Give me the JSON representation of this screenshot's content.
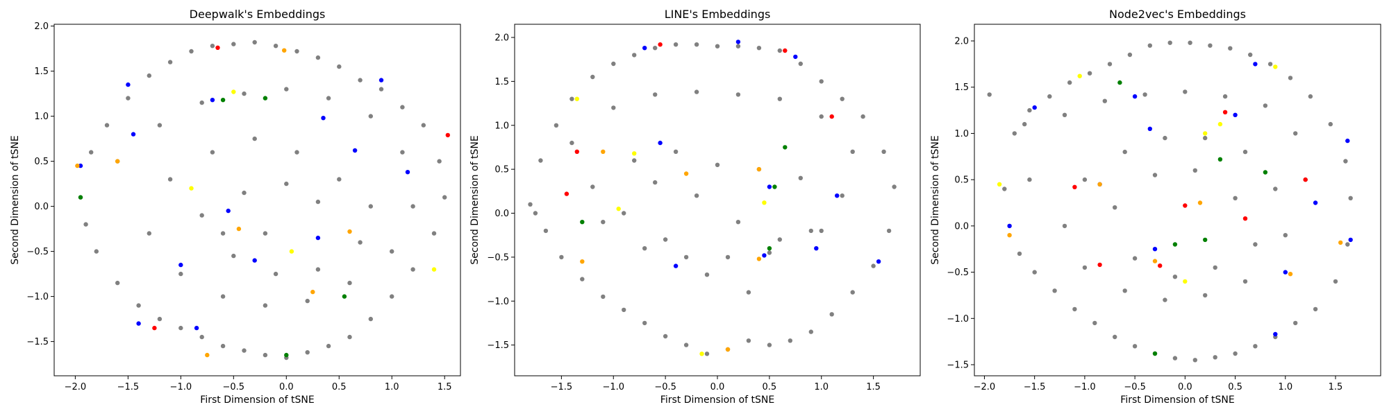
{
  "figure": {
    "background": "#ffffff"
  },
  "chart_data": [
    {
      "type": "scatter",
      "title": "Deepwalk's Embeddings",
      "xlabel": "First Dimension of tSNE",
      "ylabel": "Second Dimension of tSNE",
      "xlim": [
        -2.2,
        1.65
      ],
      "ylim": [
        -1.88,
        2.02
      ],
      "xticks": [
        -2.0,
        -1.5,
        -1.0,
        -0.5,
        0.0,
        0.5,
        1.0,
        1.5
      ],
      "yticks": [
        -1.5,
        -1.0,
        -0.5,
        0.0,
        0.5,
        1.0,
        1.5,
        2.0
      ],
      "xtick_labels": [
        "−2.0",
        "−1.5",
        "−1.0",
        "−0.5",
        "0.0",
        "0.5",
        "1.0",
        "1.5"
      ],
      "ytick_labels": [
        "−1.5",
        "−1.0",
        "−0.5",
        "0.0",
        "0.5",
        "1.0",
        "1.5",
        "2.0"
      ],
      "grid": false,
      "series": [
        {
          "color": "#808080",
          "x": [
            -1.95,
            -1.85,
            -1.7,
            -1.5,
            -1.3,
            -1.1,
            -0.9,
            -0.7,
            -0.5,
            -0.3,
            -0.1,
            0.1,
            0.3,
            0.5,
            0.7,
            0.9,
            1.1,
            1.3,
            1.45,
            1.5,
            1.4,
            1.2,
            1.0,
            0.8,
            0.6,
            0.4,
            0.2,
            0.0,
            -0.2,
            -0.4,
            -0.6,
            -0.8,
            -1.0,
            -1.2,
            -1.4,
            -1.6,
            -1.8,
            -1.9,
            -1.6,
            -1.2,
            -0.8,
            -0.4,
            0.0,
            0.4,
            0.8,
            1.1,
            1.2,
            1.0,
            0.6,
            0.2,
            -0.2,
            -0.6,
            -1.0,
            -1.3,
            -1.1,
            -0.7,
            -0.3,
            0.1,
            0.5,
            0.8,
            0.7,
            0.3,
            -0.1,
            -0.5,
            -0.8,
            -0.4,
            0.0,
            0.3,
            -0.2,
            -0.6
          ],
          "y": [
            0.1,
            0.6,
            0.9,
            1.2,
            1.45,
            1.6,
            1.72,
            1.78,
            1.8,
            1.82,
            1.78,
            1.72,
            1.65,
            1.55,
            1.4,
            1.3,
            1.1,
            0.9,
            0.5,
            0.1,
            -0.3,
            -0.7,
            -1.0,
            -1.25,
            -1.45,
            -1.55,
            -1.62,
            -1.68,
            -1.65,
            -1.6,
            -1.55,
            -1.45,
            -1.35,
            -1.25,
            -1.1,
            -0.85,
            -0.5,
            -0.2,
            0.5,
            0.9,
            1.15,
            1.25,
            1.3,
            1.2,
            1.0,
            0.6,
            0.0,
            -0.5,
            -0.85,
            -1.05,
            -1.1,
            -1.0,
            -0.75,
            -0.3,
            0.3,
            0.6,
            0.75,
            0.6,
            0.3,
            0.0,
            -0.4,
            -0.7,
            -0.75,
            -0.55,
            -0.1,
            0.15,
            0.25,
            0.05,
            -0.3,
            -0.3
          ]
        },
        {
          "color": "#0000ff",
          "x": [
            -1.95,
            -1.5,
            -1.45,
            -0.7,
            0.35,
            0.9,
            1.15,
            0.65,
            -0.3,
            -1.4,
            -0.85,
            0.3,
            -0.55,
            -1.0
          ],
          "y": [
            0.45,
            1.35,
            0.8,
            1.18,
            0.98,
            1.4,
            0.38,
            0.62,
            -0.6,
            -1.3,
            -1.35,
            -0.35,
            -0.05,
            -0.65
          ]
        },
        {
          "color": "#ff0000",
          "x": [
            -0.65,
            1.53,
            -1.25
          ],
          "y": [
            1.76,
            0.79,
            -1.35
          ]
        },
        {
          "color": "#ffa500",
          "x": [
            -1.98,
            -0.02,
            -0.75,
            0.6,
            -0.45,
            0.25,
            -1.6
          ],
          "y": [
            0.45,
            1.73,
            -1.65,
            -0.28,
            -0.25,
            -0.95,
            0.5
          ]
        },
        {
          "color": "#008000",
          "x": [
            -0.6,
            -0.2,
            0.55,
            -1.95,
            0.0
          ],
          "y": [
            1.18,
            1.2,
            -1.0,
            0.1,
            -1.65
          ]
        },
        {
          "color": "#ffff00",
          "x": [
            -0.5,
            -0.9,
            1.4,
            0.05
          ],
          "y": [
            1.27,
            0.2,
            -0.7,
            -0.5
          ]
        }
      ]
    },
    {
      "type": "scatter",
      "title": "LINE's Embeddings",
      "xlabel": "First Dimension of tSNE",
      "ylabel": "Second Dimension of tSNE",
      "xlim": [
        -1.95,
        1.95
      ],
      "ylim": [
        -1.85,
        2.15
      ],
      "xticks": [
        -1.5,
        -1.0,
        -0.5,
        0.0,
        0.5,
        1.0,
        1.5
      ],
      "yticks": [
        -1.5,
        -1.0,
        -0.5,
        0.0,
        0.5,
        1.0,
        1.5,
        2.0
      ],
      "xtick_labels": [
        "−1.5",
        "−1.0",
        "−0.5",
        "0.0",
        "0.5",
        "1.0",
        "1.5"
      ],
      "ytick_labels": [
        "−1.5",
        "−1.0",
        "−0.5",
        "0.0",
        "0.5",
        "1.0",
        "1.5",
        "2.0"
      ],
      "grid": false,
      "series": [
        {
          "color": "#808080",
          "x": [
            -1.8,
            -1.7,
            -1.55,
            -1.4,
            -1.2,
            -1.0,
            -0.8,
            -0.6,
            -0.4,
            -0.2,
            0.0,
            0.2,
            0.4,
            0.6,
            0.8,
            1.0,
            1.2,
            1.4,
            1.6,
            1.7,
            1.65,
            1.5,
            1.3,
            1.1,
            0.9,
            0.7,
            0.5,
            0.3,
            0.1,
            -0.1,
            -0.3,
            -0.5,
            -0.7,
            -0.9,
            -1.1,
            -1.3,
            -1.5,
            -1.65,
            -1.75,
            -1.4,
            -1.0,
            -0.6,
            -0.2,
            0.2,
            0.6,
            1.0,
            1.3,
            1.2,
            0.9,
            0.5,
            0.1,
            -0.3,
            -0.7,
            -1.1,
            -1.2,
            -0.8,
            -0.4,
            0.0,
            0.4,
            0.8,
            1.0,
            0.6,
            0.2,
            -0.2,
            -0.6,
            -0.9,
            -0.5,
            -0.1,
            0.3
          ],
          "y": [
            0.1,
            0.6,
            1.0,
            1.3,
            1.55,
            1.7,
            1.8,
            1.88,
            1.92,
            1.92,
            1.9,
            1.9,
            1.88,
            1.85,
            1.7,
            1.5,
            1.3,
            1.1,
            0.7,
            0.3,
            -0.2,
            -0.6,
            -0.9,
            -1.15,
            -1.35,
            -1.45,
            -1.5,
            -1.45,
            -1.55,
            -1.6,
            -1.5,
            -1.4,
            -1.25,
            -1.1,
            -0.95,
            -0.75,
            -0.5,
            -0.2,
            0.0,
            0.8,
            1.2,
            1.35,
            1.38,
            1.35,
            1.3,
            1.1,
            0.7,
            0.2,
            -0.2,
            -0.45,
            -0.5,
            -0.5,
            -0.4,
            -0.1,
            0.3,
            0.6,
            0.7,
            0.55,
            0.5,
            0.4,
            -0.2,
            -0.3,
            -0.1,
            0.2,
            0.35,
            0.0,
            -0.3,
            -0.7,
            -0.9
          ]
        },
        {
          "color": "#0000ff",
          "x": [
            -0.7,
            0.2,
            0.75,
            -0.55,
            0.5,
            0.45,
            -0.4,
            1.15,
            1.55,
            0.95
          ],
          "y": [
            1.88,
            1.95,
            1.78,
            0.8,
            0.3,
            -0.48,
            -0.6,
            0.2,
            -0.55,
            -0.4
          ]
        },
        {
          "color": "#ff0000",
          "x": [
            -0.55,
            0.65,
            1.1,
            -1.35,
            -1.45
          ],
          "y": [
            1.92,
            1.85,
            1.1,
            0.7,
            0.22
          ]
        },
        {
          "color": "#ffa500",
          "x": [
            -1.1,
            -0.3,
            0.4,
            0.4,
            0.1,
            -1.3
          ],
          "y": [
            0.7,
            0.45,
            0.5,
            -0.52,
            -1.55,
            -0.55
          ]
        },
        {
          "color": "#008000",
          "x": [
            0.55,
            -1.3,
            0.5,
            0.65
          ],
          "y": [
            0.3,
            -0.1,
            -0.4,
            0.75
          ]
        },
        {
          "color": "#ffff00",
          "x": [
            -1.35,
            -0.95,
            -0.8,
            -0.15,
            0.45
          ],
          "y": [
            1.3,
            0.05,
            0.68,
            -1.6,
            0.12
          ]
        }
      ]
    },
    {
      "type": "scatter",
      "title": "Node2vec's Embeddings",
      "xlabel": "First Dimension of tSNE",
      "ylabel": "Second Dimension of tSNE",
      "xlim": [
        -2.1,
        1.95
      ],
      "ylim": [
        -1.62,
        2.18
      ],
      "xticks": [
        -2.0,
        -1.5,
        -1.0,
        -0.5,
        0.0,
        0.5,
        1.0,
        1.5
      ],
      "yticks": [
        -1.5,
        -1.0,
        -0.5,
        0.0,
        0.5,
        1.0,
        1.5,
        2.0
      ],
      "xtick_labels": [
        "−2.0",
        "−1.5",
        "−1.0",
        "−0.5",
        "0.0",
        "0.5",
        "1.0",
        "1.5"
      ],
      "ytick_labels": [
        "−1.5",
        "−1.0",
        "−0.5",
        "0.0",
        "0.5",
        "1.0",
        "1.5",
        "2.0"
      ],
      "grid": false,
      "series": [
        {
          "color": "#808080",
          "x": [
            -1.8,
            -1.75,
            -1.65,
            -1.5,
            -1.3,
            -1.1,
            -0.9,
            -0.7,
            -0.5,
            -0.3,
            -0.1,
            0.1,
            0.3,
            0.5,
            0.7,
            0.9,
            1.1,
            1.3,
            1.5,
            1.62,
            1.65,
            1.6,
            1.45,
            1.25,
            1.05,
            0.85,
            0.65,
            0.45,
            0.25,
            0.05,
            -0.15,
            -0.35,
            -0.55,
            -0.75,
            -0.95,
            -1.15,
            -1.35,
            -1.55,
            -1.7,
            -1.95,
            -1.6,
            -1.55,
            -1.2,
            -0.8,
            -0.4,
            0.0,
            0.4,
            0.8,
            1.1,
            1.2,
            1.0,
            0.6,
            0.2,
            -0.2,
            -0.6,
            -1.0,
            -1.2,
            -1.0,
            -0.6,
            -0.2,
            0.2,
            0.6,
            0.9,
            0.7,
            0.3,
            -0.1,
            -0.5,
            -0.7,
            -0.3,
            0.1,
            0.5
          ],
          "y": [
            0.4,
            0.0,
            -0.3,
            -0.5,
            -0.7,
            -0.9,
            -1.05,
            -1.2,
            -1.3,
            -1.38,
            -1.43,
            -1.45,
            -1.42,
            -1.38,
            -1.3,
            -1.2,
            -1.05,
            -0.9,
            -0.6,
            -0.2,
            0.3,
            0.7,
            1.1,
            1.4,
            1.6,
            1.75,
            1.85,
            1.92,
            1.95,
            1.98,
            1.98,
            1.95,
            1.85,
            1.75,
            1.65,
            1.55,
            1.4,
            1.25,
            1.0,
            1.42,
            1.1,
            0.5,
            1.2,
            1.35,
            1.42,
            1.45,
            1.4,
            1.3,
            1.0,
            0.5,
            -0.1,
            -0.6,
            -0.75,
            -0.8,
            -0.7,
            -0.45,
            0.0,
            0.5,
            0.8,
            0.95,
            0.95,
            0.8,
            0.4,
            -0.2,
            -0.45,
            -0.55,
            -0.35,
            0.2,
            0.55,
            0.6,
            0.3
          ]
        },
        {
          "color": "#0000ff",
          "x": [
            -1.5,
            -0.5,
            -1.75,
            0.7,
            1.62,
            1.65,
            0.9,
            1.3,
            -0.85,
            -0.3,
            0.5,
            1.0,
            -0.35
          ],
          "y": [
            1.28,
            1.4,
            0.0,
            1.75,
            0.92,
            -0.15,
            -1.17,
            0.25,
            0.45,
            -0.25,
            1.2,
            -0.5,
            1.05
          ]
        },
        {
          "color": "#ff0000",
          "x": [
            -1.1,
            0.0,
            -0.25,
            -0.85,
            0.6,
            0.4,
            1.2
          ],
          "y": [
            0.42,
            0.22,
            -0.43,
            -0.42,
            0.08,
            1.23,
            0.5
          ]
        },
        {
          "color": "#ffa500",
          "x": [
            -0.85,
            -1.75,
            0.15,
            1.05,
            1.55,
            -0.3
          ],
          "y": [
            0.45,
            -0.1,
            0.25,
            -0.52,
            -0.18,
            -0.38
          ]
        },
        {
          "color": "#008000",
          "x": [
            -0.65,
            0.35,
            0.8,
            -0.1,
            -0.3,
            0.2
          ],
          "y": [
            1.55,
            0.72,
            0.58,
            -0.2,
            -1.38,
            -0.15
          ]
        },
        {
          "color": "#ffff00",
          "x": [
            -1.05,
            0.0,
            0.35,
            -1.85,
            0.9,
            0.2
          ],
          "y": [
            1.62,
            -0.6,
            1.1,
            0.45,
            1.72,
            1.0
          ]
        }
      ]
    }
  ]
}
